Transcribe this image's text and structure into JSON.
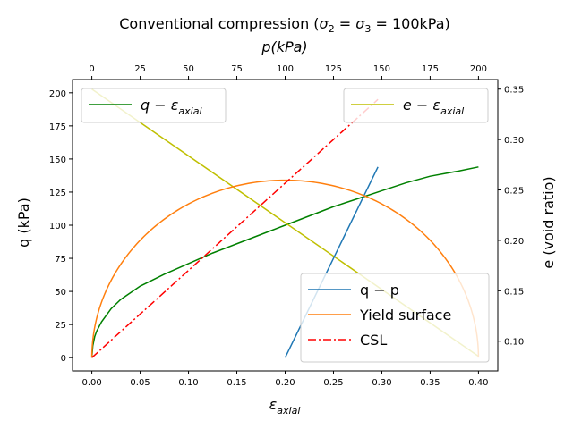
{
  "chart_data": {
    "type": "line",
    "title": {
      "prefix": "Conventional compression (",
      "s2": "σ",
      "s2_sub": "2",
      "eq1": " = ",
      "s3": "σ",
      "s3_sub": "3",
      "eq2": " = 100kPa)"
    },
    "axes": {
      "bottom": {
        "label": "ε",
        "label_sub": "axial",
        "range": [
          -0.02,
          0.42
        ],
        "ticks": [
          0.0,
          0.05,
          0.1,
          0.15,
          0.2,
          0.25,
          0.3,
          0.35,
          0.4
        ],
        "tick_labels": [
          "0.00",
          "0.05",
          "0.10",
          "0.15",
          "0.20",
          "0.25",
          "0.30",
          "0.35",
          "0.40"
        ]
      },
      "top": {
        "label": "p(kPa)",
        "range": [
          -10,
          210
        ],
        "ticks": [
          0,
          25,
          50,
          75,
          100,
          125,
          150,
          175,
          200
        ],
        "tick_labels": [
          "0",
          "25",
          "50",
          "75",
          "100",
          "125",
          "150",
          "175",
          "200"
        ]
      },
      "left": {
        "label": "q (kPa)",
        "range": [
          -10,
          210
        ],
        "ticks": [
          0,
          25,
          50,
          75,
          100,
          125,
          150,
          175,
          200
        ],
        "tick_labels": [
          "0",
          "25",
          "50",
          "75",
          "100",
          "125",
          "150",
          "175",
          "200"
        ]
      },
      "right": {
        "label": "e (void ratio)",
        "range": [
          0.0705,
          0.3595
        ],
        "ticks": [
          0.1,
          0.15,
          0.2,
          0.25,
          0.3,
          0.35
        ],
        "tick_labels": [
          "0.10",
          "0.15",
          "0.20",
          "0.25",
          "0.30",
          "0.35"
        ]
      }
    },
    "series": [
      {
        "id": "q-eps",
        "axes": "bottom-left",
        "color": "#008000",
        "dash": "solid",
        "x": [
          0,
          0.001,
          0.003,
          0.005,
          0.01,
          0.02,
          0.03,
          0.05,
          0.075,
          0.1,
          0.125,
          0.15,
          0.175,
          0.2,
          0.225,
          0.25,
          0.275,
          0.3,
          0.325,
          0.35,
          0.38,
          0.4
        ],
        "y": [
          0,
          9,
          16,
          20,
          27,
          37,
          44,
          54,
          63,
          71,
          79,
          86,
          93,
          100,
          107,
          114,
          120,
          126,
          132,
          137,
          141,
          144
        ]
      },
      {
        "id": "e-eps",
        "axes": "bottom-right",
        "color": "#bfbf00",
        "dash": "solid",
        "x": [
          0,
          0.4
        ],
        "y": [
          0.35,
          0.085
        ]
      },
      {
        "id": "q-p",
        "axes": "top-left",
        "color": "#1f77b4",
        "dash": "solid",
        "x": [
          100,
          148
        ],
        "y": [
          0,
          144
        ]
      },
      {
        "id": "yield",
        "axes": "top-left",
        "color": "#ff7f0e",
        "dash": "solid",
        "ellipse": {
          "center": 100,
          "half_width": 100,
          "height": 134
        }
      },
      {
        "id": "csl",
        "axes": "top-left",
        "color": "#ff0000",
        "dash": "dashdot",
        "x": [
          0,
          148
        ],
        "y": [
          0,
          195
        ]
      }
    ],
    "legends": [
      {
        "position": "upper-left",
        "entries": [
          {
            "series": "q-eps",
            "text": "q",
            "sep": " − ",
            "greek": "ε",
            "sub": "axial"
          }
        ]
      },
      {
        "position": "upper-right",
        "entries": [
          {
            "series": "e-eps",
            "text": "e",
            "sep": " − ",
            "greek": "ε",
            "sub": "axial"
          }
        ]
      },
      {
        "position": "lower-right",
        "entries": [
          {
            "series": "q-p",
            "text": "q − p"
          },
          {
            "series": "yield",
            "text": "Yield surface"
          },
          {
            "series": "csl",
            "text": "CSL"
          }
        ]
      }
    ]
  }
}
